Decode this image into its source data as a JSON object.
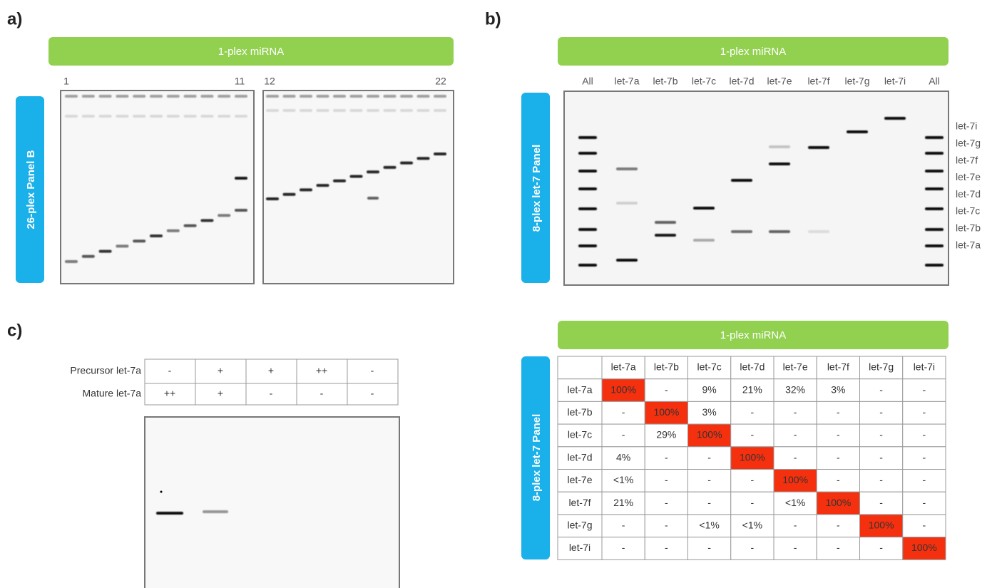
{
  "panel_a": {
    "label": "a)",
    "header": "1-plex miRNA",
    "side_label": "26-plex Panel B",
    "lane_numbers": [
      "1",
      "11",
      "12",
      "22"
    ]
  },
  "panel_b": {
    "label": "b)",
    "header": "1-plex miRNA",
    "side_label": "8-plex let-7 Panel",
    "lanes": [
      "All",
      "let-7a",
      "let-7b",
      "let-7c",
      "let-7d",
      "let-7e",
      "let-7f",
      "let-7g",
      "let-7i",
      "All"
    ],
    "band_labels": [
      "let-7i",
      "let-7g",
      "let-7f",
      "let-7e",
      "let-7d",
      "let-7c",
      "let-7b",
      "let-7a"
    ]
  },
  "panel_c": {
    "label": "c)",
    "rows": [
      {
        "label": "Precursor let-7a",
        "cells": [
          "-",
          "+",
          "+",
          "++",
          "-"
        ]
      },
      {
        "label": "Mature let-7a",
        "cells": [
          "++",
          "+",
          "-",
          "-",
          "-"
        ]
      }
    ]
  },
  "matrix": {
    "header": "1-plex miRNA",
    "side_label": "8-plex let-7 Panel",
    "columns": [
      "let-7a",
      "let-7b",
      "let-7c",
      "let-7d",
      "let-7e",
      "let-7f",
      "let-7g",
      "let-7i"
    ],
    "rows": [
      {
        "label": "let-7a",
        "cells": [
          "100%",
          "-",
          "9%",
          "21%",
          "32%",
          "3%",
          "-",
          "-"
        ]
      },
      {
        "label": "let-7b",
        "cells": [
          "-",
          "100%",
          "3%",
          "-",
          "-",
          "-",
          "-",
          "-"
        ]
      },
      {
        "label": "let-7c",
        "cells": [
          "-",
          "29%",
          "100%",
          "-",
          "-",
          "-",
          "-",
          "-"
        ]
      },
      {
        "label": "let-7d",
        "cells": [
          "4%",
          "-",
          "-",
          "100%",
          "-",
          "-",
          "-",
          "-"
        ]
      },
      {
        "label": "let-7e",
        "cells": [
          "<1%",
          "-",
          "-",
          "-",
          "100%",
          "-",
          "-",
          "-"
        ]
      },
      {
        "label": "let-7f",
        "cells": [
          "21%",
          "-",
          "-",
          "-",
          "<1%",
          "100%",
          "-",
          "-"
        ]
      },
      {
        "label": "let-7g",
        "cells": [
          "-",
          "-",
          "<1%",
          "<1%",
          "-",
          "-",
          "100%",
          "-"
        ]
      },
      {
        "label": "let-7i",
        "cells": [
          "-",
          "-",
          "-",
          "-",
          "-",
          "-",
          "-",
          "100%"
        ]
      }
    ]
  }
}
